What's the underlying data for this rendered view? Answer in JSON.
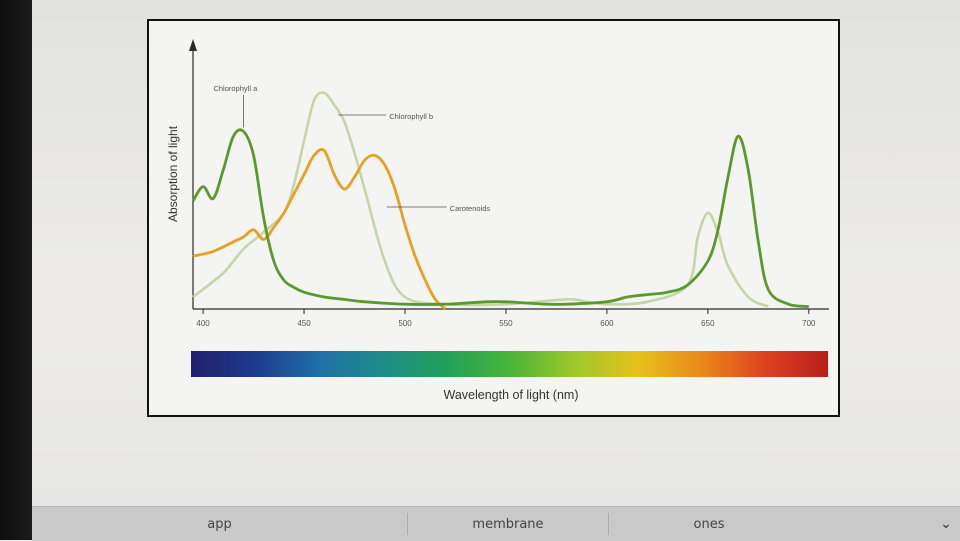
{
  "chart_data": {
    "type": "line",
    "xlabel": "Wavelength of light (nm)",
    "ylabel": "Absorption of light",
    "xlim": [
      395,
      710
    ],
    "ylim": [
      0,
      1
    ],
    "xticks": [
      400,
      450,
      500,
      550,
      600,
      650,
      700
    ],
    "series": [
      {
        "name": "Chlorophyll a",
        "color": "#5a9a2a",
        "x": [
          395,
          400,
          405,
          410,
          415,
          420,
          425,
          430,
          435,
          440,
          445,
          450,
          460,
          470,
          480,
          500,
          520,
          540,
          550,
          570,
          580,
          600,
          610,
          620,
          630,
          640,
          650,
          655,
          660,
          665,
          670,
          675,
          680,
          690,
          700
        ],
        "y": [
          0.45,
          0.51,
          0.46,
          0.58,
          0.72,
          0.74,
          0.64,
          0.38,
          0.2,
          0.12,
          0.09,
          0.07,
          0.05,
          0.04,
          0.03,
          0.02,
          0.02,
          0.03,
          0.03,
          0.02,
          0.02,
          0.03,
          0.05,
          0.06,
          0.07,
          0.1,
          0.2,
          0.33,
          0.55,
          0.72,
          0.58,
          0.28,
          0.08,
          0.02,
          0.01
        ]
      },
      {
        "name": "Chlorophyll b",
        "color": "#c4d6a8",
        "x": [
          395,
          410,
          420,
          430,
          440,
          445,
          450,
          455,
          460,
          465,
          470,
          475,
          480,
          490,
          500,
          520,
          550,
          580,
          590,
          600,
          620,
          640,
          645,
          650,
          655,
          660,
          670,
          680
        ],
        "y": [
          0.05,
          0.15,
          0.25,
          0.32,
          0.4,
          0.52,
          0.7,
          0.87,
          0.9,
          0.85,
          0.78,
          0.65,
          0.5,
          0.2,
          0.05,
          0.02,
          0.02,
          0.04,
          0.03,
          0.02,
          0.03,
          0.1,
          0.3,
          0.4,
          0.32,
          0.18,
          0.05,
          0.01
        ]
      },
      {
        "name": "Carotenoids",
        "color": "#e8a020",
        "x": [
          395,
          405,
          415,
          420,
          425,
          430,
          435,
          440,
          445,
          450,
          455,
          460,
          465,
          470,
          475,
          480,
          485,
          490,
          495,
          500,
          505,
          510,
          515,
          520
        ],
        "y": [
          0.22,
          0.24,
          0.28,
          0.3,
          0.33,
          0.29,
          0.34,
          0.4,
          0.48,
          0.56,
          0.64,
          0.66,
          0.56,
          0.5,
          0.55,
          0.62,
          0.64,
          0.6,
          0.5,
          0.35,
          0.22,
          0.12,
          0.04,
          0.0
        ]
      }
    ],
    "spectrum_colors": [
      "#22206e",
      "#1d3a8c",
      "#1f6fa8",
      "#1d8c8a",
      "#21a05a",
      "#49b43a",
      "#9cc82c",
      "#e6c21c",
      "#ea8a1c",
      "#de4220",
      "#b81f1c"
    ]
  },
  "keyboard": {
    "suggestions": [
      "app",
      "membrane",
      "ones"
    ],
    "expand_icon": "⌄"
  }
}
